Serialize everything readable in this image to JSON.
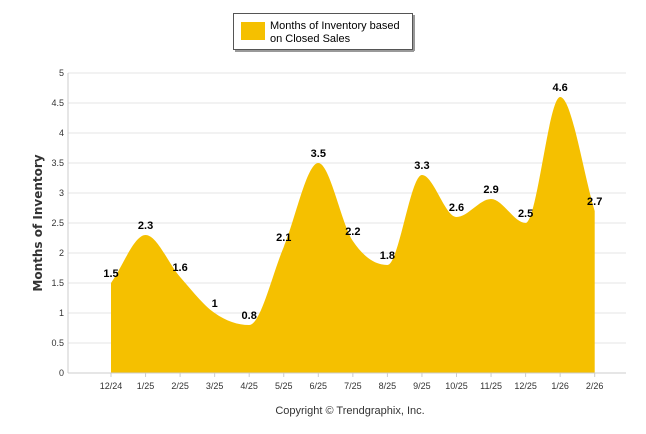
{
  "chart_data": {
    "type": "area",
    "title": "",
    "xlabel": "",
    "ylabel": "Months of Inventory",
    "categories": [
      "12/24",
      "1/25",
      "2/25",
      "3/25",
      "4/25",
      "5/25",
      "6/25",
      "7/25",
      "8/25",
      "9/25",
      "10/25",
      "11/25",
      "12/25",
      "1/26",
      "2/26"
    ],
    "series": [
      {
        "name": "Months of Inventory based on Closed Sales",
        "values": [
          1.5,
          2.3,
          1.6,
          1,
          0.8,
          2.1,
          3.5,
          2.2,
          1.8,
          3.3,
          2.6,
          2.9,
          2.5,
          4.6,
          2.7
        ],
        "labels": [
          "1.5",
          "2.3",
          "1.6",
          "1",
          "0.8",
          "2.1",
          "3.5",
          "2.2",
          "1.8",
          "3.3",
          "2.6",
          "2.9",
          "2.5",
          "4.6",
          "2.7"
        ],
        "color": "#f5c000"
      }
    ],
    "ylim": [
      0,
      5
    ],
    "yticks": [
      "0",
      "0.5",
      "1",
      "1.5",
      "2",
      "2.5",
      "3",
      "3.5",
      "4",
      "4.5",
      "5"
    ],
    "grid": true,
    "legend": {
      "position": "top-center",
      "line1": "Months of Inventory based",
      "line2": "on Closed Sales"
    }
  },
  "footer": {
    "copyright": "Copyright © Trendgraphix, Inc."
  },
  "colors": {
    "area": "#f5c000",
    "grid": "#e6e6e6",
    "axis": "#cccccc"
  }
}
